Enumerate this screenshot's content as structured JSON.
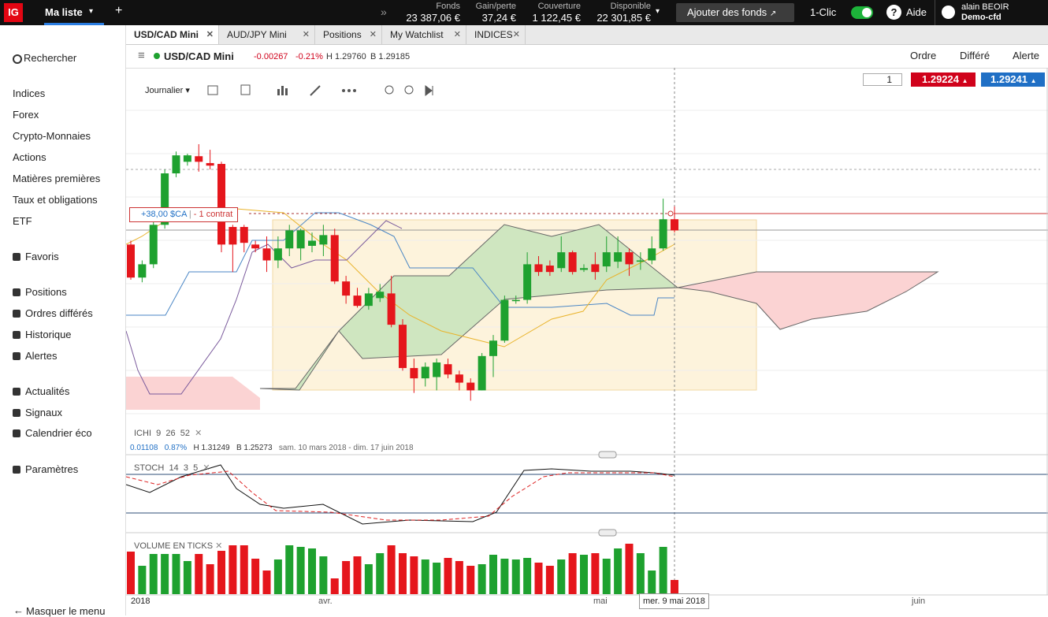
{
  "topbar": {
    "logo": "IG",
    "watchlist": "Ma liste",
    "add": "+",
    "stats": [
      {
        "label": "Fonds",
        "value": "23 387,06 €"
      },
      {
        "label": "Gain/perte",
        "value": "37,24 €"
      },
      {
        "label": "Couverture",
        "value": "1 122,45 €"
      },
      {
        "label": "Disponible",
        "value": "22 301,85 €"
      }
    ],
    "fund_button": "Ajouter des fonds",
    "one_click": "1-Clic",
    "help": "Aide",
    "user": {
      "name": "alain BEOIR",
      "account": "Demo-cfd"
    }
  },
  "sidebar": {
    "search": "Rechercher",
    "markets": [
      "Indices",
      "Forex",
      "Crypto-Monnaies",
      "Actions",
      "Matières premières",
      "Taux et obligations",
      "ETF"
    ],
    "favorites": "Favoris",
    "trading": [
      "Positions",
      "Ordres différés",
      "Historique",
      "Alertes"
    ],
    "tools": [
      "Actualités",
      "Signaux",
      "Calendrier éco"
    ],
    "settings": "Paramètres",
    "collapse": "Masquer le menu"
  },
  "tabs": [
    "USD/CAD Mini",
    "AUD/JPY Mini",
    "Positions",
    "My Watchlist",
    "INDICES"
  ],
  "instrument": {
    "name": "USD/CAD Mini",
    "change": "-0.00267",
    "change_pct": "-0.21%",
    "high": "H 1.29760",
    "low": "B 1.29185"
  },
  "order_tabs": [
    "Ordre",
    "Différé",
    "Alerte"
  ],
  "toolbar": {
    "interval": "Journalier"
  },
  "ticket": {
    "quantity": "1",
    "sell": "1.29224",
    "buy": "1.29241"
  },
  "position_label": {
    "pnl": "+38,00 $CA",
    "size": "- 1 contrat"
  },
  "chart_data": {
    "type": "candlestick",
    "up_color": "#1ea12f",
    "down_color": "#e5161c",
    "ylim": [
      1.247,
      1.3205
    ],
    "candles": {
      "open": [
        1.2892,
        1.2815,
        1.2846,
        1.2938,
        1.3058,
        1.3085,
        1.3098,
        1.3082,
        1.308,
        1.2933,
        1.2933,
        1.2892,
        1.2883,
        1.2855,
        1.2883,
        1.2883,
        1.2889,
        1.2892,
        1.2914,
        1.2806,
        1.2773,
        1.2749,
        1.2767,
        1.2778,
        1.2705,
        1.2604,
        1.258,
        1.2583,
        1.2613,
        1.2589,
        1.257,
        1.2552,
        1.2632,
        1.2668,
        1.276,
        1.2763,
        1.2846,
        1.2843,
        1.2837,
        1.2874,
        1.2833,
        1.2846,
        1.2841,
        1.2852,
        1.2874,
        1.2852,
        1.2855,
        1.2883,
        1.2951
      ],
      "close": [
        1.2815,
        1.2846,
        1.2938,
        1.3058,
        1.31,
        1.31,
        1.3085,
        1.3076,
        1.2892,
        1.2892,
        1.2896,
        1.2883,
        1.2855,
        1.2883,
        1.2925,
        1.2925,
        1.2901,
        1.2914,
        1.2806,
        1.2773,
        1.2749,
        1.2778,
        1.2782,
        1.2705,
        1.2604,
        1.258,
        1.2607,
        1.2617,
        1.2589,
        1.257,
        1.2552,
        1.2632,
        1.2668,
        1.2763,
        1.2763,
        1.2846,
        1.2828,
        1.2828,
        1.2874,
        1.2828,
        1.2837,
        1.2828,
        1.2874,
        1.2874,
        1.2846,
        1.2855,
        1.2883,
        1.2951,
        1.2925
      ],
      "high": [
        1.2901,
        1.2855,
        1.2947,
        1.3067,
        1.3109,
        1.3104,
        1.3126,
        1.3113,
        1.3085,
        1.2938,
        1.2938,
        1.2901,
        1.2911,
        1.2911,
        1.2938,
        1.2929,
        1.292,
        1.2938,
        1.2929,
        1.2819,
        1.2791,
        1.2791,
        1.28,
        1.2819,
        1.2718,
        1.2626,
        1.2617,
        1.2626,
        1.2626,
        1.2598,
        1.258,
        1.2639,
        1.2681,
        1.2773,
        1.2773,
        1.2874,
        1.2865,
        1.2855,
        1.2911,
        1.2878,
        1.2846,
        1.2874,
        1.2911,
        1.2911,
        1.2883,
        1.2874,
        1.2911,
        1.2999,
        1.2981
      ],
      "low": [
        1.281,
        1.2804,
        1.2837,
        1.2929,
        1.3049,
        1.3076,
        1.3062,
        1.3067,
        1.2874,
        1.2828,
        1.2874,
        1.2874,
        1.2828,
        1.2837,
        1.2865,
        1.2855,
        1.2874,
        1.2865,
        1.28,
        1.2754,
        1.2745,
        1.274,
        1.2758,
        1.2699,
        1.2598,
        1.2546,
        1.2561,
        1.2552,
        1.258,
        1.2552,
        1.2528,
        1.2552,
        1.2583,
        1.2663,
        1.2754,
        1.2754,
        1.2819,
        1.2819,
        1.2828,
        1.2822,
        1.2828,
        1.281,
        1.2828,
        1.2837,
        1.2819,
        1.2833,
        1.2846,
        1.2878,
        1.292
      ]
    },
    "ichimoku": {
      "label": "ICHI",
      "params": [
        "9",
        "26",
        "52"
      ]
    },
    "stats": {
      "change": "0.01108",
      "change_pct": "0.87%",
      "high": "H 1.31249",
      "low": "B 1.25273",
      "range": "sam. 10 mars 2018 - dim. 17 juin 2018"
    },
    "stoch": {
      "label": "STOCH",
      "params": [
        "14",
        "3",
        "5"
      ]
    },
    "volume": {
      "title": "VOLUME EN TICKS",
      "ylim": [
        0,
        70
      ],
      "values": [
        54,
        36,
        51,
        51,
        51,
        42,
        51,
        38,
        55,
        62,
        62,
        45,
        30,
        44,
        62,
        60,
        58,
        48,
        20,
        42,
        48,
        38,
        52,
        62,
        52,
        48,
        44,
        40,
        46,
        42,
        36,
        38,
        50,
        45,
        44,
        46,
        40,
        36,
        44,
        52,
        50,
        52,
        45,
        58,
        64,
        52,
        30,
        60,
        18
      ]
    },
    "x_labels": [
      "2018",
      "avr.",
      "mai",
      "juin"
    ],
    "crosshair_label": "mer. 9 mai 2018"
  }
}
